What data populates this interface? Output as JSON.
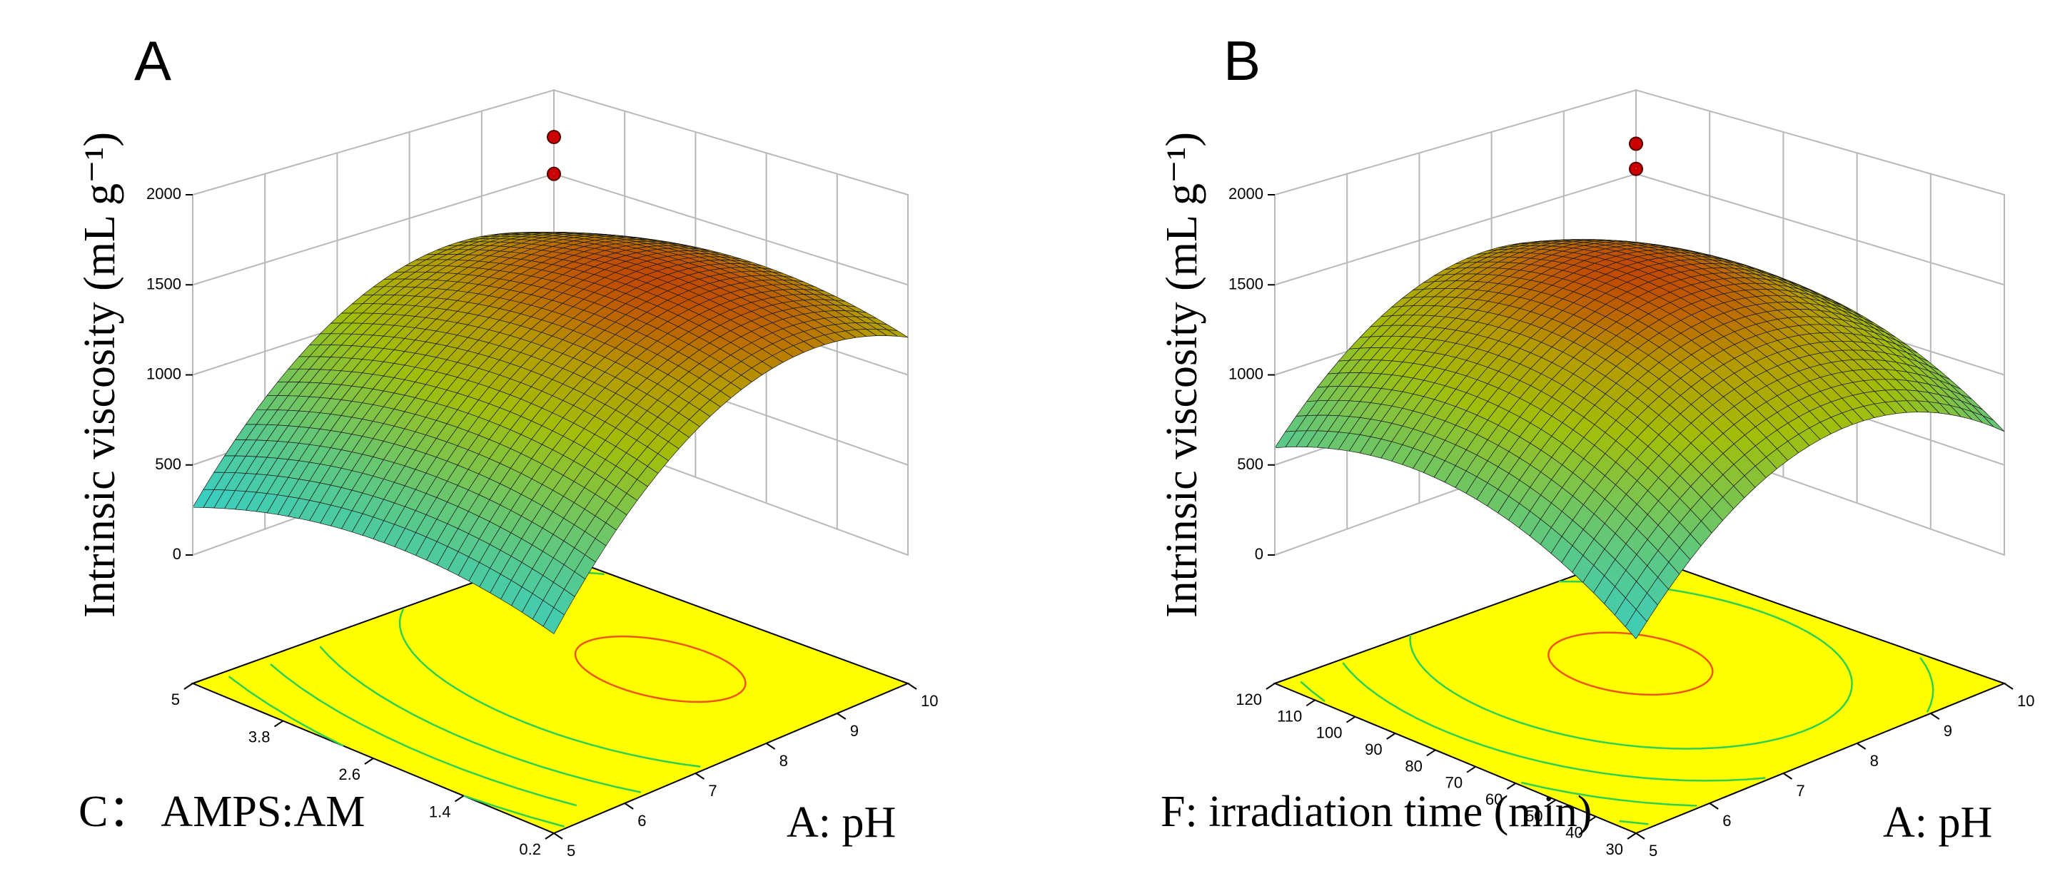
{
  "chart_data": [
    {
      "panel": "A",
      "type": "surface3d",
      "zlabel": "Intrinsic viscosity (mL g⁻¹)",
      "xlabel": "A: pH",
      "ylabel": "C： AMPS:AM",
      "zlim": [
        0,
        2000
      ],
      "z_ticks": [
        "0",
        "500",
        "1000",
        "1500",
        "2000"
      ],
      "x_ticks": [
        "5",
        "6",
        "7",
        "8",
        "9",
        "10"
      ],
      "y_ticks": [
        "0.2",
        "1.4",
        "2.6",
        "3.8",
        "5"
      ],
      "xlim": [
        5,
        10
      ],
      "ylim": [
        0.2,
        5
      ],
      "surface_model": {
        "peak_z": 1530,
        "peak_x": 8.6,
        "peak_y": 2.2,
        "curv_x": 1950,
        "curv_y": 720
      },
      "design_points_z": [
        1500,
        1720
      ],
      "contour_levels": [
        500,
        750,
        1000,
        1250,
        1500
      ]
    },
    {
      "panel": "B",
      "type": "surface3d",
      "zlabel": "Intrinsic viscosity (mL g⁻¹)",
      "xlabel": "A: pH",
      "ylabel": "F: irradiation time (min)",
      "zlim": [
        0,
        2000
      ],
      "z_ticks": [
        "0",
        "500",
        "1000",
        "1500",
        "2000"
      ],
      "x_ticks": [
        "5",
        "6",
        "7",
        "8",
        "9",
        "10"
      ],
      "y_ticks": [
        "30",
        "40",
        "50",
        "60",
        "70",
        "80",
        "90",
        "100",
        "110",
        "120"
      ],
      "xlim": [
        5,
        10
      ],
      "ylim": [
        30,
        120
      ],
      "surface_model": {
        "peak_z": 1540,
        "peak_x": 7.9,
        "peak_y": 84,
        "curv_x": 2150,
        "curv_y": 1250
      },
      "design_points_z": [
        1530,
        1680
      ],
      "contour_levels": [
        500,
        750,
        1000,
        1250,
        1500
      ]
    }
  ],
  "colors": {
    "floor": "#ffff00",
    "grid": "#b8b8b8",
    "axis": "#000000",
    "surface_low": "#2ecfd6",
    "surface_mid": "#a2be0a",
    "surface_high": "#c14a00",
    "design_point": "#cc0000",
    "contour_low": "#2ed050",
    "contour_high": "#ee5500"
  }
}
